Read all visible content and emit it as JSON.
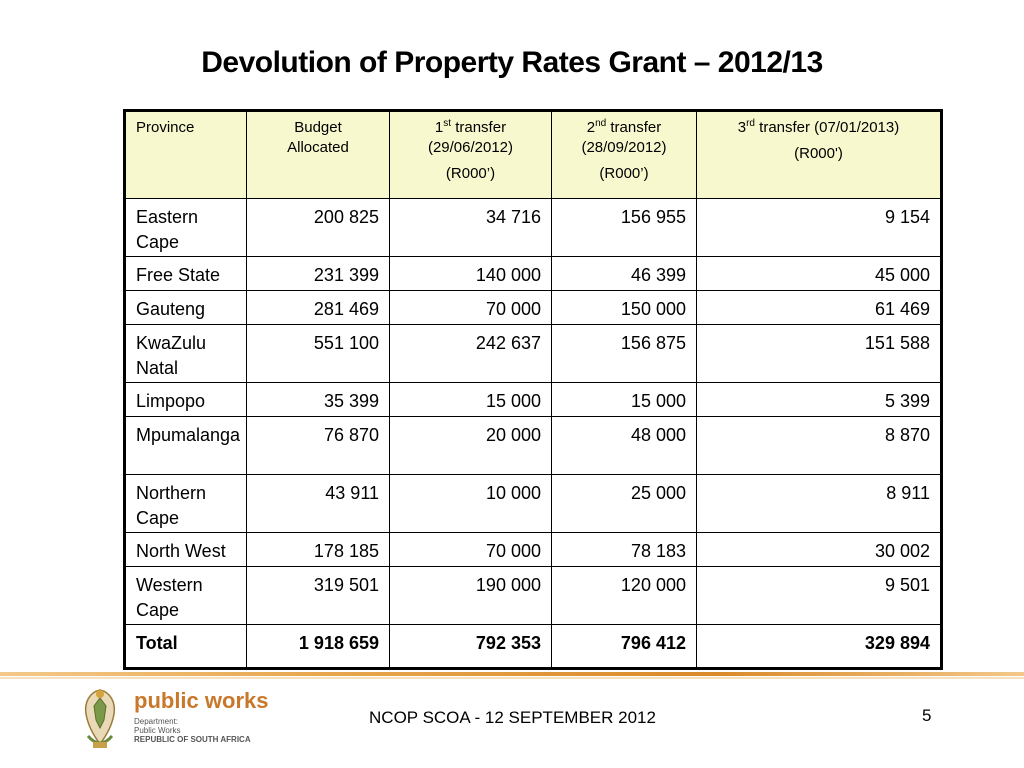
{
  "title": "Devolution of Property Rates Grant – 2012/13",
  "table": {
    "headers": {
      "province": "Province",
      "budget_l1": "Budget",
      "budget_l2": "Allocated",
      "t1_num": "1",
      "t1_sup": "st",
      "t1_rest": " transfer",
      "t1_date": "(29/06/2012)",
      "t1_unit": "(R000’)",
      "t2_num": "2",
      "t2_sup": "nd",
      "t2_rest": " transfer",
      "t2_date": "(28/09/2012)",
      "t2_unit": "(R000’)",
      "t3_num": "3",
      "t3_sup": "rd",
      "t3_rest": " transfer (07/01/2013)",
      "t3_unit": "(R000')"
    },
    "rows": [
      {
        "province": "Eastern Cape",
        "budget": "200 825",
        "t1": "34 716",
        "t2": "156 955",
        "t3": "9 154"
      },
      {
        "province": "Free State",
        "budget": "231 399",
        "t1": "140 000",
        "t2": "46 399",
        "t3": "45 000"
      },
      {
        "province": "Gauteng",
        "budget": "281 469",
        "t1": "70 000",
        "t2": "150 000",
        "t3": "61 469"
      },
      {
        "province": "KwaZulu Natal",
        "budget": "551 100",
        "t1": "242 637",
        "t2": "156 875",
        "t3": "151 588"
      },
      {
        "province": "Limpopo",
        "budget": "35 399",
        "t1": "15 000",
        "t2": "15 000",
        "t3": "5 399"
      },
      {
        "province": "Mpumalanga",
        "budget": "76 870",
        "t1": "20 000",
        "t2": "48 000",
        "t3": "8 870"
      },
      {
        "province": "Northern Cape",
        "budget": "43 911",
        "t1": "10 000",
        "t2": "25 000",
        "t3": "8 911"
      },
      {
        "province": "North West",
        "budget": "178 185",
        "t1": "70 000",
        "t2": "78 183",
        "t3": "30 002"
      },
      {
        "province": "Western Cape",
        "budget": "319 501",
        "t1": "190 000",
        "t2": "120 000",
        "t3": "9 501"
      }
    ],
    "total": {
      "label": "Total",
      "budget": "1 918 659",
      "t1": "792 353",
      "t2": "796 412",
      "t3": "329 894"
    }
  },
  "logo": {
    "name": "public works",
    "line1": "Department:",
    "line2": "Public Works",
    "line3": "REPUBLIC OF SOUTH AFRICA"
  },
  "footer": {
    "text": "NCOP SCOA - 12 SEPTEMBER 2012",
    "page": "5"
  },
  "colors": {
    "header_fill": "#f8f8cf",
    "footer_rule": "#e8a84f",
    "logo_text": "#c8782a"
  }
}
